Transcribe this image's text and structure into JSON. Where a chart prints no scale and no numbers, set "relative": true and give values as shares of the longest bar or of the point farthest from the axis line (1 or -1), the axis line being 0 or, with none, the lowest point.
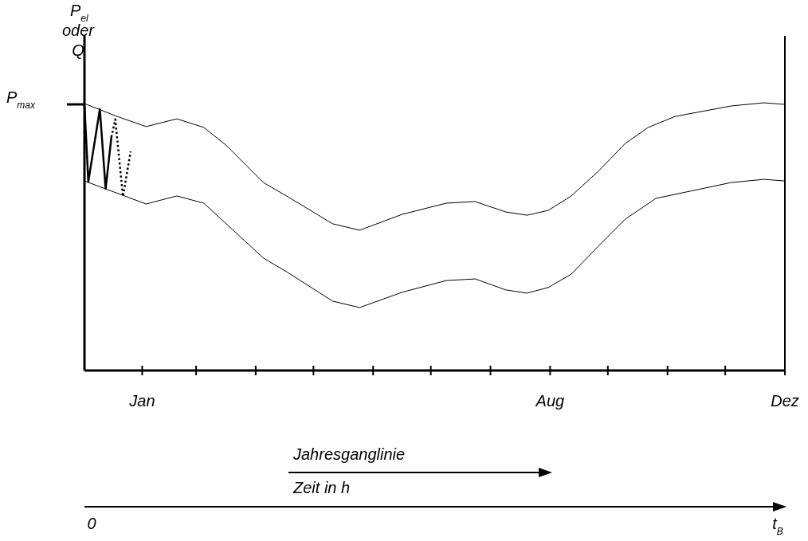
{
  "chart_data": {
    "type": "line",
    "relative": true,
    "ylabel": "P$_{el}$ oder Q",
    "xlim": [
      "--01-01",
      "--12-31"
    ],
    "xticks": [
      {
        "value": "--01-31",
        "label": "Jan"
      },
      {
        "value": "--02-28",
        "label": null
      },
      {
        "value": "--03-31",
        "label": null
      },
      {
        "value": "--04-30",
        "label": null
      },
      {
        "value": "--05-31",
        "label": null
      },
      {
        "value": "--06-30",
        "label": null
      },
      {
        "value": "--07-31",
        "label": null
      },
      {
        "value": "--08-31",
        "label": "Aug"
      },
      {
        "value": "--09-30",
        "label": null
      },
      {
        "value": "--10-31",
        "label": null
      },
      {
        "value": "--11-30",
        "label": null
      },
      {
        "value": "--12-31",
        "label": "Dez"
      }
    ],
    "series": [
      {
        "color": "#000000",
        "line_style": "solid",
        "x": [
          "--01-01",
          "--01-18",
          "--02-02",
          "--02-18",
          "--03-04",
          "--03-16",
          "--04-04",
          "--04-16",
          "--05-10",
          "--05-24",
          "--06-15",
          "--07-08",
          "--07-23",
          "--08-08",
          "--08-19",
          "--08-30",
          "--09-11",
          "--09-25",
          "--10-09",
          "--10-21",
          "--11-04",
          "--12-03",
          "--12-20",
          "--12-31"
        ],
        "values": [
          0.997,
          0.949,
          0.911,
          0.94,
          0.908,
          0.839,
          0.702,
          0.652,
          0.548,
          0.524,
          0.583,
          0.625,
          0.631,
          0.592,
          0.58,
          0.598,
          0.652,
          0.744,
          0.848,
          0.908,
          0.949,
          0.988,
          1,
          0.994
        ]
      },
      {
        "color": "#000000",
        "line_style": "solid",
        "x": [
          "--01-01",
          "--02-02",
          "--02-18",
          "--03-04",
          "--04-04",
          "--04-16",
          "--05-10",
          "--05-24",
          "--06-15",
          "--07-08",
          "--07-23",
          "--08-08",
          "--08-19",
          "--08-30",
          "--09-11",
          "--09-25",
          "--10-09",
          "--10-25",
          "--12-03",
          "--12-20",
          "--12-31"
        ],
        "values": [
          0.708,
          0.622,
          0.652,
          0.625,
          0.42,
          0.369,
          0.259,
          0.235,
          0.292,
          0.336,
          0.342,
          0.301,
          0.289,
          0.31,
          0.36,
          0.464,
          0.565,
          0.643,
          0.702,
          0.714,
          0.708
        ]
      },
      {
        "color": "#000000",
        "line_style": "solid",
        "x": [
          "--01-01",
          "--01-03",
          "--01-09",
          "--01-12",
          "--01-15"
        ],
        "values": [
          0.992,
          0.705,
          0.976,
          0.679,
          0.872
        ]
      },
      {
        "color": "#000000",
        "line_style": "dotted",
        "x": [
          "--01-15",
          "--01-17",
          "--01-21",
          "--01-25"
        ],
        "values": [
          0.872,
          0.938,
          0.65,
          0.818
        ]
      }
    ],
    "annotations": [
      "P$_{max}$",
      "Jahresganglinie",
      "Zeit in h",
      "0",
      "t$_{B}$"
    ]
  }
}
